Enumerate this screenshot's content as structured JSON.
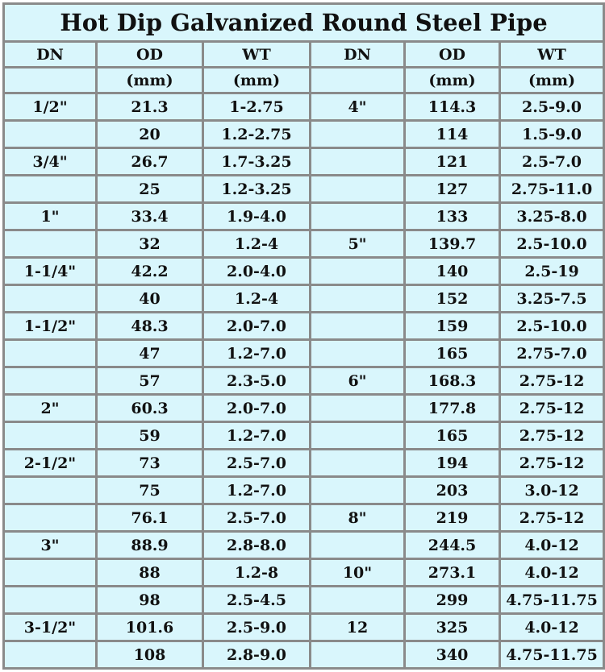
{
  "title": "Hot Dip Galvanized Round Steel Pipe",
  "headers": [
    "DN",
    "OD",
    "WT",
    "DN",
    "OD",
    "WT"
  ],
  "units": [
    "",
    "(mm)",
    "(mm)",
    "",
    "(mm)",
    "(mm)"
  ],
  "rows": [
    [
      "1/2\"",
      "21.3",
      "1-2.75",
      "4\"",
      "114.3",
      "2.5-9.0"
    ],
    [
      "",
      "20",
      "1.2-2.75",
      "",
      "114",
      "1.5-9.0"
    ],
    [
      "3/4\"",
      "26.7",
      "1.7-3.25",
      "",
      "121",
      "2.5-7.0"
    ],
    [
      "",
      "25",
      "1.2-3.25",
      "",
      "127",
      "2.75-11.0"
    ],
    [
      "1\"",
      "33.4",
      "1.9-4.0",
      "",
      "133",
      "3.25-8.0"
    ],
    [
      "",
      "32",
      "1.2-4",
      "5\"",
      "139.7",
      "2.5-10.0"
    ],
    [
      "1-1/4\"",
      "42.2",
      "2.0-4.0",
      "",
      "140",
      "2.5-19"
    ],
    [
      "",
      "40",
      "1.2-4",
      "",
      "152",
      "3.25-7.5"
    ],
    [
      "1-1/2\"",
      "48.3",
      "2.0-7.0",
      "",
      "159",
      "2.5-10.0"
    ],
    [
      "",
      "47",
      "1.2-7.0",
      "",
      "165",
      "2.75-7.0"
    ],
    [
      "",
      "57",
      "2.3-5.0",
      "6\"",
      "168.3",
      "2.75-12"
    ],
    [
      "2\"",
      "60.3",
      "2.0-7.0",
      "",
      "177.8",
      "2.75-12"
    ],
    [
      "",
      "59",
      "1.2-7.0",
      "",
      "165",
      "2.75-12"
    ],
    [
      "2-1/2\"",
      "73",
      "2.5-7.0",
      "",
      "194",
      "2.75-12"
    ],
    [
      "",
      "75",
      "1.2-7.0",
      "",
      "203",
      "3.0-12"
    ],
    [
      "",
      "76.1",
      "2.5-7.0",
      "8\"",
      "219",
      "2.75-12"
    ],
    [
      "3\"",
      "88.9",
      "2.8-8.0",
      "",
      "244.5",
      "4.0-12"
    ],
    [
      "",
      "88",
      "1.2-8",
      "10\"",
      "273.1",
      "4.0-12"
    ],
    [
      "",
      "98",
      "2.5-4.5",
      "",
      "299",
      "4.75-11.75"
    ],
    [
      "3-1/2\"",
      "101.6",
      "2.5-9.0",
      "12",
      "325",
      "4.0-12"
    ],
    [
      "",
      "108",
      "2.8-9.0",
      "",
      "340",
      "4.75-11.75"
    ]
  ]
}
